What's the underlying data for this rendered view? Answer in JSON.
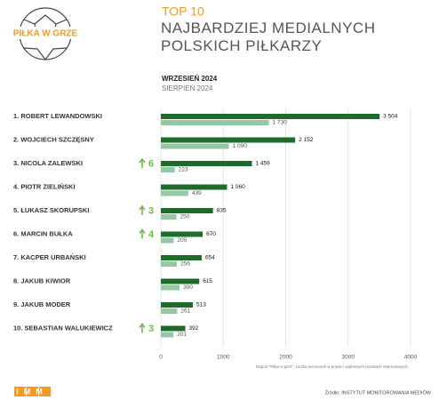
{
  "chart_data": {
    "type": "bar",
    "orientation": "horizontal",
    "logo": "PIŁKA W GRZE",
    "title": "TOP 10",
    "subtitle": "NAJBARDZIEJ MEDIALNYCH POLSKICH PIŁKARZY",
    "categories": [
      "1. ROBERT LEWANDOWSKI",
      "2. WOJCIECH SZCZĘSNY",
      "3. NICOLA ZALEWSKI",
      "4. PIOTR ZIELIŃSKI",
      "5. ŁUKASZ SKORUPSKI",
      "6. MARCIN BUŁKA",
      "7. KACPER URBAŃSKI",
      "8. JAKUB KIWIOR",
      "9. JAKUB MODER",
      "10. SEBASTIAN WALUKIEWICZ"
    ],
    "rank_change": [
      null,
      null,
      6,
      null,
      3,
      4,
      null,
      null,
      null,
      3
    ],
    "series": [
      {
        "name": "WRZESIEŃ 2024",
        "color": "#1e6b2c",
        "values": [
          3504,
          2152,
          1459,
          1060,
          835,
          670,
          654,
          615,
          513,
          392
        ],
        "value_labels": [
          "3 504",
          "2 152",
          "1 459",
          "1 060",
          "835",
          "670",
          "654",
          "615",
          "513",
          "392"
        ]
      },
      {
        "name": "SIERPIEŃ 2024",
        "color": "#93c9a2",
        "values": [
          1730,
          1090,
          223,
          439,
          250,
          205,
          256,
          300,
          261,
          201
        ],
        "value_labels": [
          "1 730",
          "1 090",
          "223",
          "439",
          "250",
          "205",
          "256",
          "300",
          "261",
          "201"
        ]
      }
    ],
    "xlim": [
      0,
      4000
    ],
    "xticks": [
      0,
      1000,
      2000,
      3000,
      4000
    ],
    "grid": true,
    "note": "Raport \"Piłka w grze\". Liczba wzmianek w prasie i wybranych portalach internetowych.",
    "footer_logo": "IMM",
    "source": "Źródło: INSTYTUT MONITOROWANIA MEDIÓW"
  }
}
